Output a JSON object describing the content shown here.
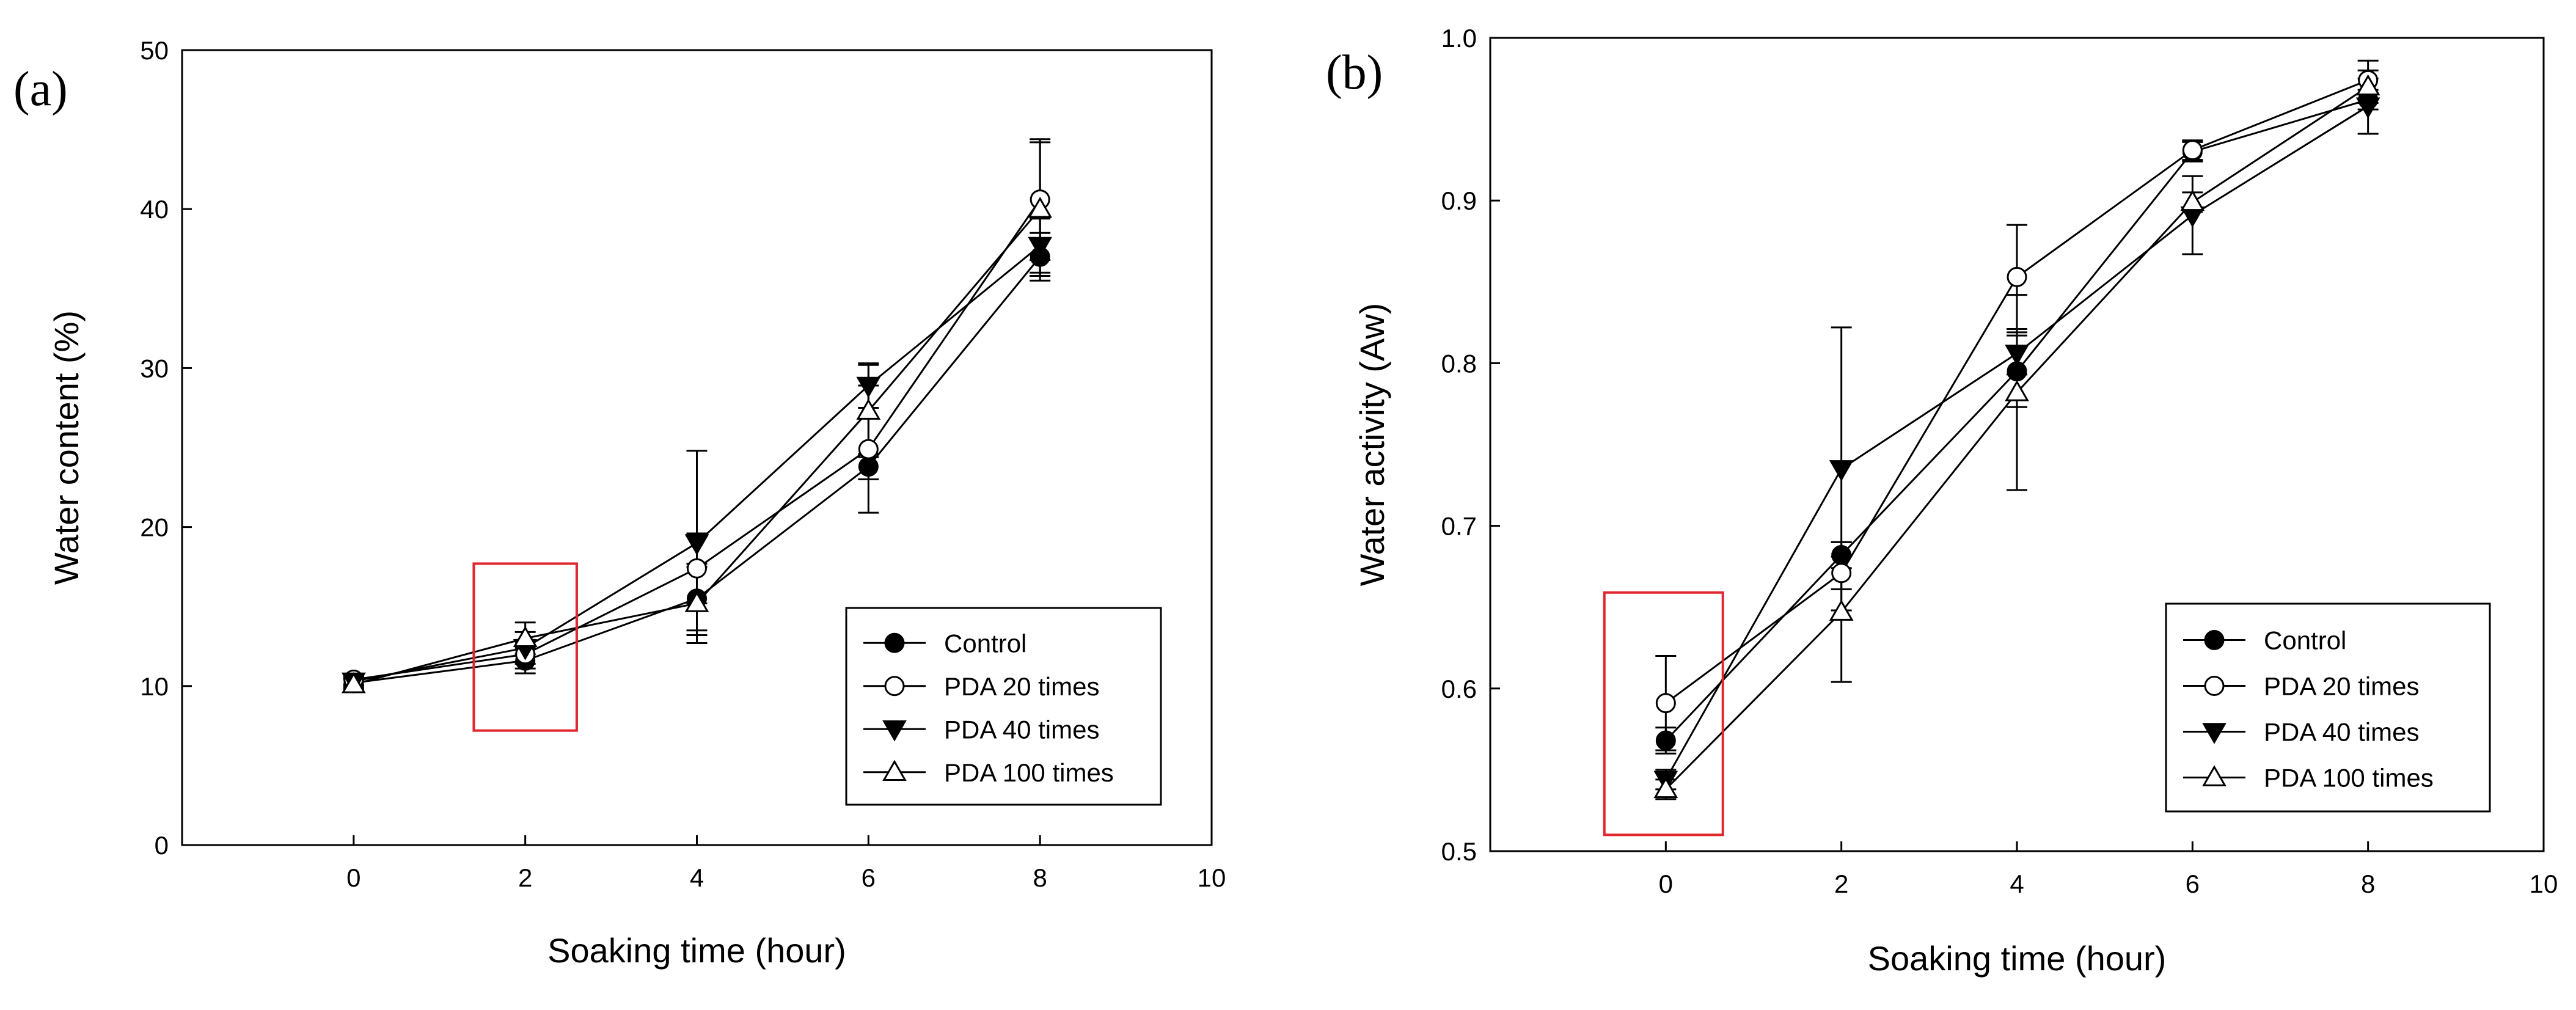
{
  "chart_data": [
    {
      "type": "line",
      "panel_label": "(a)",
      "title": "",
      "xlabel": "Soaking time (hour)",
      "ylabel": "Water content (%)",
      "xlim": [
        -2,
        10
      ],
      "ylim": [
        0,
        50
      ],
      "xticks": [
        0,
        2,
        4,
        6,
        8,
        10
      ],
      "yticks": [
        0,
        10,
        20,
        30,
        40,
        50
      ],
      "x": [
        0,
        2,
        4,
        6,
        8
      ],
      "legend_position": "bottom-right",
      "highlight": {
        "x_range": [
          1.4,
          2.6
        ],
        "y_range": [
          7.2,
          17.7
        ],
        "color": "#e0262e"
      },
      "series": [
        {
          "name": "Control",
          "marker": "filled-circle",
          "values": [
            10.2,
            11.6,
            15.5,
            23.8,
            37.0
          ],
          "errors": [
            0.3,
            0.8,
            2.0,
            0.8,
            1.5
          ]
        },
        {
          "name": "PDA 20 times",
          "marker": "open-circle",
          "values": [
            10.4,
            12.0,
            17.4,
            24.9,
            40.6
          ],
          "errors": [
            0.3,
            0.9,
            2.2,
            4.0,
            3.8
          ]
        },
        {
          "name": "PDA 40 times",
          "marker": "filled-triangle-down",
          "values": [
            10.3,
            12.4,
            19.0,
            28.9,
            37.7
          ],
          "errors": [
            0.3,
            1.0,
            5.8,
            1.4,
            1.7
          ]
        },
        {
          "name": "PDA 100 times",
          "marker": "open-triangle-up",
          "values": [
            10.1,
            13.0,
            15.2,
            27.3,
            40.0
          ],
          "errors": [
            0.3,
            1.0,
            2.5,
            2.9,
            4.2
          ]
        }
      ]
    },
    {
      "type": "line",
      "panel_label": "(b)",
      "title": "",
      "xlabel": "Soaking time (hour)",
      "ylabel": "Water activity (Aw)",
      "xlim": [
        -2,
        10
      ],
      "ylim": [
        0.5,
        1.0
      ],
      "xticks": [
        0,
        2,
        4,
        6,
        8,
        10
      ],
      "yticks": [
        0.5,
        0.6,
        0.7,
        0.8,
        0.9,
        1.0
      ],
      "x": [
        0,
        2,
        4,
        6,
        8
      ],
      "legend_position": "bottom-right",
      "highlight": {
        "x_range": [
          -0.7,
          0.65
        ],
        "y_range": [
          0.51,
          0.659
        ],
        "color": "#e0262e"
      },
      "series": [
        {
          "name": "Control",
          "marker": "filled-circle",
          "values": [
            0.568,
            0.682,
            0.795,
            0.93,
            0.962
          ],
          "errors": [
            0.008,
            0.008,
            0.022,
            0.006,
            0.006
          ]
        },
        {
          "name": "PDA 20 times",
          "marker": "open-circle",
          "values": [
            0.591,
            0.671,
            0.853,
            0.931,
            0.974
          ],
          "errors": [
            0.029,
            0.01,
            0.032,
            0.006,
            0.012
          ]
        },
        {
          "name": "PDA 40 times",
          "marker": "filled-triangle-down",
          "values": [
            0.544,
            0.735,
            0.806,
            0.891,
            0.958
          ],
          "errors": [
            0.006,
            0.087,
            0.013,
            0.024,
            0.017
          ]
        },
        {
          "name": "PDA 100 times",
          "marker": "open-triangle-up",
          "values": [
            0.538,
            0.647,
            0.782,
            0.899,
            0.97
          ],
          "errors": [
            0.006,
            0.043,
            0.06,
            0.006,
            0.01
          ]
        }
      ]
    }
  ]
}
